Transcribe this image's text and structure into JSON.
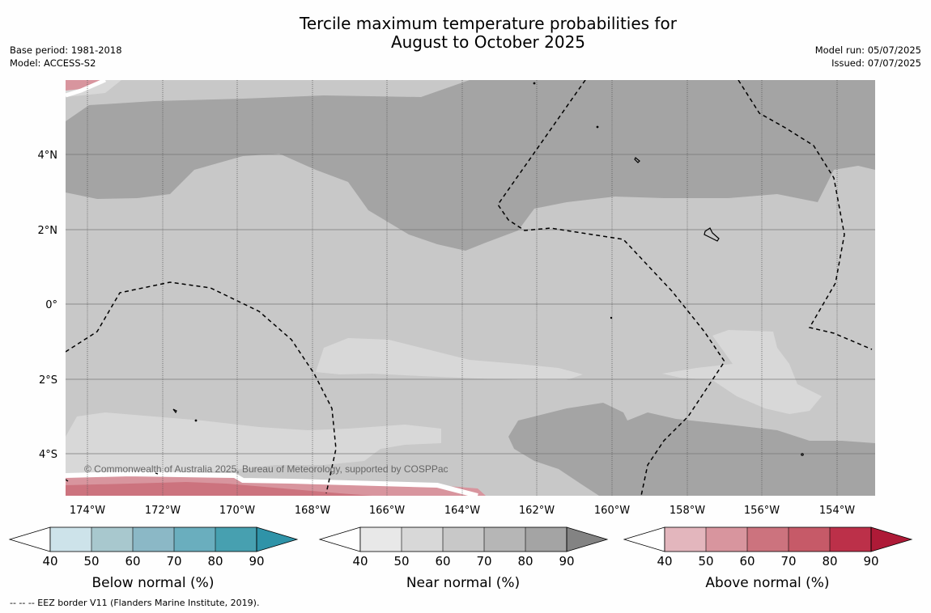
{
  "title": {
    "line1": "Tercile maximum temperature probabilities for",
    "line2": "August to October 2025"
  },
  "meta_left": {
    "base_period": "Base period: 1981-2018",
    "model": "Model: ACCESS-S2"
  },
  "meta_right": {
    "model_run": "Model run: 05/07/2025",
    "issued": "Issued: 07/07/2025"
  },
  "map": {
    "lon_labels": [
      "174°W",
      "172°W",
      "170°W",
      "168°W",
      "166°W",
      "164°W",
      "162°W",
      "160°W",
      "158°W",
      "156°W",
      "154°W"
    ],
    "lat_labels": [
      "4°N",
      "2°N",
      "0°",
      "2°S",
      "4°S"
    ],
    "copyright": "© Commonwealth of Australia 2025, Bureau of Meteorology, supported by COSPPac",
    "land_color": "#ffffff",
    "grid_color": "#555555"
  },
  "colorbars": {
    "ticks": [
      "40",
      "50",
      "60",
      "70",
      "80",
      "90"
    ],
    "below": {
      "label": "Below normal (%)",
      "colors": [
        "#cde3ea",
        "#a8c8ce",
        "#8bb8c6",
        "#6aaebe",
        "#47a0b0",
        "#2f93a8"
      ]
    },
    "near": {
      "label": "Near normal (%)",
      "colors": [
        "#e8e8e8",
        "#d8d8d8",
        "#c8c8c8",
        "#b6b6b6",
        "#a4a4a4",
        "#838383"
      ]
    },
    "above": {
      "label": "Above normal (%)",
      "colors": [
        "#e3b6bd",
        "#d8959e",
        "#cc737e",
        "#c65a68",
        "#bc3049",
        "#ae1a37"
      ]
    }
  },
  "footer": "--  --  -- EEZ border V11 (Flanders Marine Institute, 2019)."
}
